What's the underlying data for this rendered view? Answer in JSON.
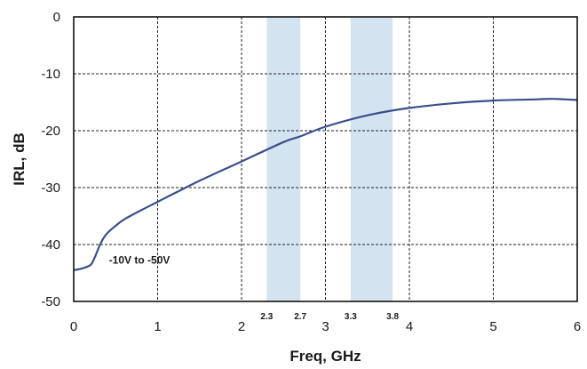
{
  "chart_data": {
    "type": "line",
    "xlabel": "Freq, GHz",
    "ylabel": "IRL, dB",
    "xlim": [
      0,
      6
    ],
    "ylim": [
      -50,
      0
    ],
    "xticks": [
      "0",
      "1",
      "2",
      "3",
      "4",
      "5",
      "6"
    ],
    "yticks": [
      "0",
      "-10",
      "-20",
      "-30",
      "-40",
      "-50"
    ],
    "grid": true,
    "bands": [
      {
        "from": 2.3,
        "to": 2.7,
        "from_label": "2.3",
        "to_label": "2.7"
      },
      {
        "from": 3.3,
        "to": 3.8,
        "from_label": "3.3",
        "to_label": "3.8"
      }
    ],
    "series": [
      {
        "x": [
          0,
          0.1,
          0.2,
          0.25,
          0.3,
          0.35,
          0.4,
          0.5,
          0.6,
          0.8,
          1.0,
          1.2,
          1.5,
          2.0,
          2.5,
          2.7,
          3.0,
          3.5,
          4.0,
          4.5,
          5.0,
          5.5,
          5.7,
          6.0
        ],
        "y": [
          -44.5,
          -44.2,
          -43.6,
          -42.3,
          -40.5,
          -39.0,
          -38.0,
          -36.7,
          -35.6,
          -34.0,
          -32.5,
          -31.0,
          -28.8,
          -25.4,
          -22.0,
          -21.0,
          -19.3,
          -17.3,
          -16.0,
          -15.2,
          -14.7,
          -14.5,
          -14.4,
          -14.6
        ],
        "color": "#3b4f8c"
      }
    ],
    "annotations": [
      {
        "text": "-10V  to -50V",
        "x": 0.42,
        "y": -42.7
      }
    ]
  },
  "colors": {
    "band_fill": "#d3e3ef",
    "series_line": "#3b4f8c"
  }
}
